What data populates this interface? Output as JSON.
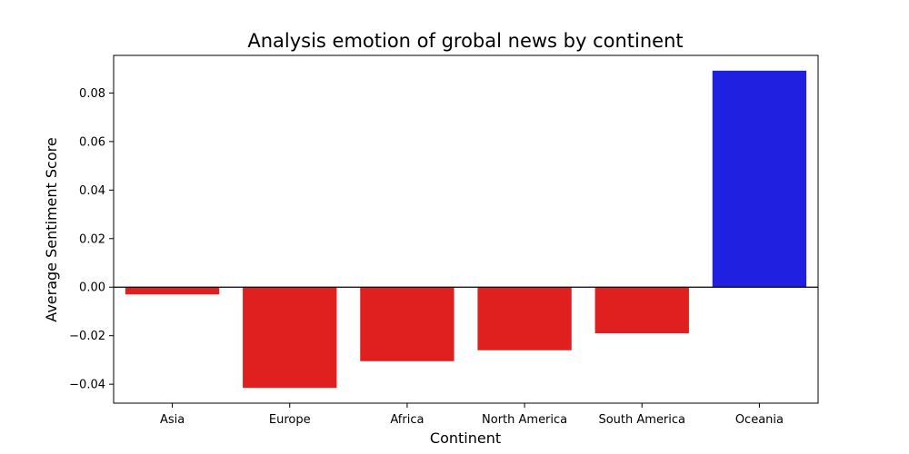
{
  "chart_data": {
    "type": "bar",
    "title": "Analysis emotion of grobal news by continent",
    "xlabel": "Continent",
    "ylabel": "Average Sentiment Score",
    "categories": [
      "Asia",
      "Europe",
      "Africa",
      "North America",
      "South America",
      "Oceania"
    ],
    "values": [
      -0.003,
      -0.0415,
      -0.0305,
      -0.026,
      -0.019,
      0.0892
    ],
    "bar_colors": [
      "#e01f1f",
      "#e01f1f",
      "#e01f1f",
      "#e01f1f",
      "#e01f1f",
      "#2020e0"
    ],
    "ylim": [
      -0.0478,
      0.0955
    ],
    "yticks": [
      -0.04,
      -0.02,
      0.0,
      0.02,
      0.04,
      0.06,
      0.08
    ],
    "ytick_labels": [
      "−0.04",
      "−0.02",
      "0.00",
      "0.02",
      "0.04",
      "0.06",
      "0.08"
    ],
    "grid": false,
    "zero_line": true
  }
}
